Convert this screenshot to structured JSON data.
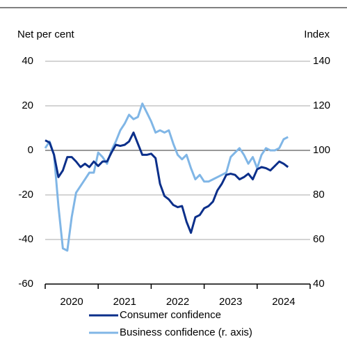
{
  "chart_data": {
    "type": "line",
    "ylabel": "Net per cent",
    "y2label": "Index",
    "x": [
      2020,
      2020.083,
      2020.167,
      2020.25,
      2020.333,
      2020.417,
      2020.5,
      2020.583,
      2020.667,
      2020.75,
      2020.833,
      2020.917,
      2021,
      2021.083,
      2021.167,
      2021.25,
      2021.333,
      2021.417,
      2021.5,
      2021.583,
      2021.667,
      2021.75,
      2021.833,
      2021.917,
      2022,
      2022.083,
      2022.167,
      2022.25,
      2022.333,
      2022.417,
      2022.5,
      2022.583,
      2022.667,
      2022.75,
      2022.833,
      2022.917,
      2023,
      2023.083,
      2023.167,
      2023.25,
      2023.333,
      2023.417,
      2023.5,
      2023.583,
      2023.667,
      2023.75,
      2023.833,
      2023.917,
      2024,
      2024.083,
      2024.167,
      2024.25,
      2024.333,
      2024.417,
      2024.5,
      2024.583
    ],
    "series": [
      {
        "name": "Consumer confidence",
        "color": "#0b2f8a",
        "values": [
          4.5,
          3.5,
          -2,
          -12,
          -9,
          -3,
          -3,
          -5,
          -7.5,
          -6,
          -7.5,
          -5,
          -7,
          -5,
          -5,
          -1,
          2.5,
          2,
          2.5,
          4,
          8,
          3,
          -2,
          -2,
          -1.5,
          -3.5,
          -15,
          -20.5,
          -22,
          -24.5,
          -25.5,
          -25,
          -32,
          -37,
          -30,
          -29,
          -26,
          -25,
          -23,
          -18,
          -15,
          -11,
          -10.5,
          -11,
          -13,
          -12,
          -10.5,
          -13,
          -8.5,
          -7.5,
          -8,
          -9,
          -7,
          -5,
          -6,
          -7.5
        ]
      },
      {
        "name": "Business confidence (r. axis)",
        "color": "#80b6e6",
        "axis": "y2",
        "values": [
          101,
          104,
          98,
          75,
          56,
          55,
          70,
          81,
          84,
          87,
          90,
          90,
          99,
          97,
          94,
          100,
          104,
          109,
          112,
          116,
          114,
          115,
          121,
          117,
          113,
          108,
          109,
          108,
          109,
          103,
          98,
          96,
          98,
          92,
          87,
          89,
          86,
          86,
          87,
          88,
          89,
          90,
          97,
          99,
          101,
          98,
          94,
          97,
          92,
          98,
          101,
          100,
          100,
          101,
          105,
          106
        ]
      }
    ],
    "xlim": [
      2020,
      2025
    ],
    "xtick_marks": [
      2020,
      2021,
      2022,
      2023,
      2024,
      2025
    ],
    "xticks": [
      {
        "value": 2020.5,
        "label": "2020"
      },
      {
        "value": 2021.5,
        "label": "2021"
      },
      {
        "value": 2022.5,
        "label": "2022"
      },
      {
        "value": 2023.5,
        "label": "2023"
      },
      {
        "value": 2024.5,
        "label": "2024"
      }
    ],
    "ylim": [
      -60,
      40
    ],
    "yticks": [
      -60,
      -40,
      -20,
      0,
      20,
      40
    ],
    "y2lim": [
      40,
      140
    ],
    "y2ticks": [
      40,
      60,
      80,
      100,
      120,
      140
    ],
    "grid": true
  }
}
